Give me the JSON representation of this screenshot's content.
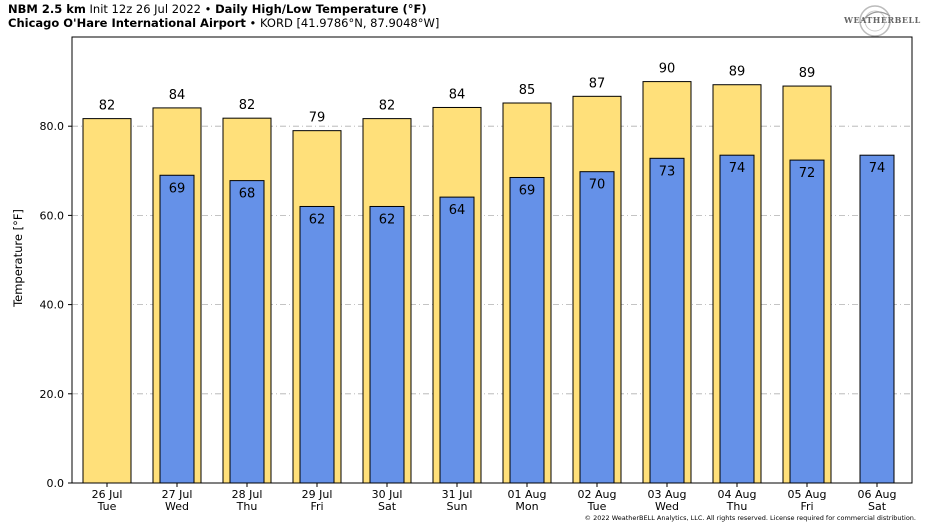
{
  "header": {
    "line1_bold": "NBM 2.5 km",
    "line1_init": "Init 12z 26 Jul 2022",
    "sep": "•",
    "line1_title": "Daily High/Low Temperature (°F)",
    "line2_bold": "Chicago O'Hare International Airport",
    "line2_station": "KORD [41.9786°N, 87.9048°W]"
  },
  "logo": {
    "text": "WEATHERBELL"
  },
  "copyright": "© 2022 WeatherBELL Analytics, LLC. All rights reserved. License required for commercial distribution.",
  "chart_data": {
    "type": "bar",
    "ylabel": "Temperature [°F]",
    "ylim": [
      0,
      100
    ],
    "yticks": [
      "0.0",
      "20.0",
      "40.0",
      "60.0",
      "80.0"
    ],
    "grid": true,
    "categories": [
      [
        "26 Jul",
        "Tue"
      ],
      [
        "27 Jul",
        "Wed"
      ],
      [
        "28 Jul",
        "Thu"
      ],
      [
        "29 Jul",
        "Fri"
      ],
      [
        "30 Jul",
        "Sat"
      ],
      [
        "31 Jul",
        "Sun"
      ],
      [
        "01 Aug",
        "Mon"
      ],
      [
        "02 Aug",
        "Tue"
      ],
      [
        "03 Aug",
        "Wed"
      ],
      [
        "04 Aug",
        "Thu"
      ],
      [
        "05 Aug",
        "Fri"
      ],
      [
        "06 Aug",
        "Sat"
      ]
    ],
    "series": [
      {
        "color": "#ffe07a",
        "values": [
          81.7,
          84.1,
          81.8,
          79.0,
          81.7,
          84.2,
          85.2,
          86.7,
          90.0,
          89.3,
          89.0,
          null
        ],
        "labels": [
          "82",
          "84",
          "82",
          "79",
          "82",
          "84",
          "85",
          "87",
          "90",
          "89",
          "89",
          ""
        ]
      },
      {
        "color": "#6591e8",
        "values": [
          null,
          69.0,
          67.8,
          62.0,
          62.0,
          64.1,
          68.5,
          69.8,
          72.8,
          73.5,
          72.4,
          73.5
        ],
        "labels": [
          "",
          "69",
          "68",
          "62",
          "62",
          "64",
          "69",
          "70",
          "73",
          "74",
          "72",
          "74"
        ]
      }
    ]
  }
}
